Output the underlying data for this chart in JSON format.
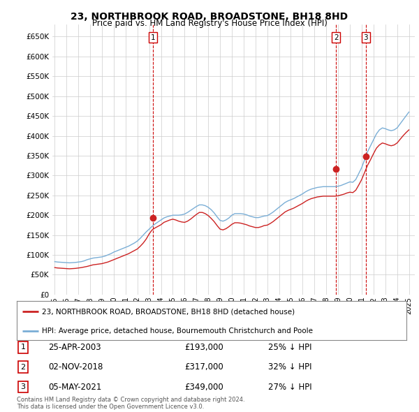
{
  "title": "23, NORTHBROOK ROAD, BROADSTONE, BH18 8HD",
  "subtitle": "Price paid vs. HM Land Registry's House Price Index (HPI)",
  "ylim": [
    0,
    680000
  ],
  "xlim_start": 1994.8,
  "xlim_end": 2025.5,
  "hpi_line_color": "#7aaed6",
  "price_line_color": "#cc2222",
  "sale_marker_color": "#cc2222",
  "hpi_data": [
    [
      1995,
      83000
    ],
    [
      1995.25,
      82000
    ],
    [
      1995.5,
      81500
    ],
    [
      1995.75,
      81000
    ],
    [
      1996,
      80500
    ],
    [
      1996.25,
      80000
    ],
    [
      1996.5,
      80500
    ],
    [
      1996.75,
      81000
    ],
    [
      1997,
      82000
    ],
    [
      1997.25,
      83000
    ],
    [
      1997.5,
      85000
    ],
    [
      1997.75,
      88000
    ],
    [
      1998,
      90000
    ],
    [
      1998.25,
      92000
    ],
    [
      1998.5,
      93000
    ],
    [
      1998.75,
      94000
    ],
    [
      1999,
      95000
    ],
    [
      1999.25,
      97000
    ],
    [
      1999.5,
      100000
    ],
    [
      1999.75,
      103000
    ],
    [
      2000,
      107000
    ],
    [
      2000.25,
      110000
    ],
    [
      2000.5,
      113000
    ],
    [
      2000.75,
      116000
    ],
    [
      2001,
      119000
    ],
    [
      2001.25,
      122000
    ],
    [
      2001.5,
      126000
    ],
    [
      2001.75,
      130000
    ],
    [
      2002,
      135000
    ],
    [
      2002.25,
      142000
    ],
    [
      2002.5,
      150000
    ],
    [
      2002.75,
      158000
    ],
    [
      2003,
      165000
    ],
    [
      2003.25,
      172000
    ],
    [
      2003.5,
      178000
    ],
    [
      2003.75,
      183000
    ],
    [
      2004,
      188000
    ],
    [
      2004.25,
      193000
    ],
    [
      2004.5,
      196000
    ],
    [
      2004.75,
      198000
    ],
    [
      2005,
      200000
    ],
    [
      2005.25,
      200000
    ],
    [
      2005.5,
      200000
    ],
    [
      2005.75,
      201000
    ],
    [
      2006,
      203000
    ],
    [
      2006.25,
      207000
    ],
    [
      2006.5,
      212000
    ],
    [
      2006.75,
      217000
    ],
    [
      2007,
      222000
    ],
    [
      2007.25,
      226000
    ],
    [
      2007.5,
      226000
    ],
    [
      2007.75,
      224000
    ],
    [
      2008,
      220000
    ],
    [
      2008.25,
      214000
    ],
    [
      2008.5,
      206000
    ],
    [
      2008.75,
      196000
    ],
    [
      2009,
      187000
    ],
    [
      2009.25,
      185000
    ],
    [
      2009.5,
      188000
    ],
    [
      2009.75,
      193000
    ],
    [
      2010,
      200000
    ],
    [
      2010.25,
      204000
    ],
    [
      2010.5,
      204000
    ],
    [
      2010.75,
      204000
    ],
    [
      2011,
      203000
    ],
    [
      2011.25,
      201000
    ],
    [
      2011.5,
      198000
    ],
    [
      2011.75,
      196000
    ],
    [
      2012,
      194000
    ],
    [
      2012.25,
      194000
    ],
    [
      2012.5,
      196000
    ],
    [
      2012.75,
      198000
    ],
    [
      2013,
      199000
    ],
    [
      2013.25,
      203000
    ],
    [
      2013.5,
      208000
    ],
    [
      2013.75,
      214000
    ],
    [
      2014,
      220000
    ],
    [
      2014.25,
      226000
    ],
    [
      2014.5,
      232000
    ],
    [
      2014.75,
      236000
    ],
    [
      2015,
      239000
    ],
    [
      2015.25,
      242000
    ],
    [
      2015.5,
      246000
    ],
    [
      2015.75,
      250000
    ],
    [
      2016,
      254000
    ],
    [
      2016.25,
      259000
    ],
    [
      2016.5,
      263000
    ],
    [
      2016.75,
      266000
    ],
    [
      2017,
      268000
    ],
    [
      2017.25,
      270000
    ],
    [
      2017.5,
      271000
    ],
    [
      2017.75,
      272000
    ],
    [
      2018,
      272000
    ],
    [
      2018.25,
      272000
    ],
    [
      2018.5,
      272000
    ],
    [
      2018.75,
      272000
    ],
    [
      2019,
      273000
    ],
    [
      2019.25,
      275000
    ],
    [
      2019.5,
      278000
    ],
    [
      2019.75,
      281000
    ],
    [
      2020,
      284000
    ],
    [
      2020.25,
      283000
    ],
    [
      2020.5,
      290000
    ],
    [
      2020.75,
      305000
    ],
    [
      2021,
      320000
    ],
    [
      2021.25,
      340000
    ],
    [
      2021.5,
      360000
    ],
    [
      2021.75,
      375000
    ],
    [
      2022,
      390000
    ],
    [
      2022.25,
      405000
    ],
    [
      2022.5,
      415000
    ],
    [
      2022.75,
      420000
    ],
    [
      2023,
      418000
    ],
    [
      2023.25,
      415000
    ],
    [
      2023.5,
      413000
    ],
    [
      2023.75,
      415000
    ],
    [
      2024,
      420000
    ],
    [
      2024.25,
      430000
    ],
    [
      2024.5,
      440000
    ],
    [
      2024.75,
      450000
    ],
    [
      2025,
      460000
    ]
  ],
  "price_data": [
    [
      1995,
      68000
    ],
    [
      1995.25,
      67000
    ],
    [
      1995.5,
      66500
    ],
    [
      1995.75,
      66000
    ],
    [
      1996,
      65500
    ],
    [
      1996.25,
      65000
    ],
    [
      1996.5,
      65500
    ],
    [
      1996.75,
      66000
    ],
    [
      1997,
      67000
    ],
    [
      1997.25,
      68000
    ],
    [
      1997.5,
      69500
    ],
    [
      1997.75,
      71000
    ],
    [
      1998,
      73000
    ],
    [
      1998.25,
      75000
    ],
    [
      1998.5,
      76000
    ],
    [
      1998.75,
      77000
    ],
    [
      1999,
      78000
    ],
    [
      1999.25,
      80000
    ],
    [
      1999.5,
      82000
    ],
    [
      1999.75,
      85000
    ],
    [
      2000,
      88000
    ],
    [
      2000.25,
      91000
    ],
    [
      2000.5,
      94000
    ],
    [
      2000.75,
      97000
    ],
    [
      2001,
      100000
    ],
    [
      2001.25,
      103000
    ],
    [
      2001.5,
      107000
    ],
    [
      2001.75,
      111000
    ],
    [
      2002,
      115000
    ],
    [
      2002.25,
      122000
    ],
    [
      2002.5,
      130000
    ],
    [
      2002.75,
      140000
    ],
    [
      2003,
      153000
    ],
    [
      2003.25,
      163000
    ],
    [
      2003.5,
      168000
    ],
    [
      2003.75,
      172000
    ],
    [
      2004,
      176000
    ],
    [
      2004.25,
      182000
    ],
    [
      2004.5,
      185000
    ],
    [
      2004.75,
      188000
    ],
    [
      2005,
      190000
    ],
    [
      2005.25,
      188000
    ],
    [
      2005.5,
      185000
    ],
    [
      2005.75,
      183000
    ],
    [
      2006,
      182000
    ],
    [
      2006.25,
      185000
    ],
    [
      2006.5,
      190000
    ],
    [
      2006.75,
      196000
    ],
    [
      2007,
      202000
    ],
    [
      2007.25,
      207000
    ],
    [
      2007.5,
      207000
    ],
    [
      2007.75,
      204000
    ],
    [
      2008,
      199000
    ],
    [
      2008.25,
      192000
    ],
    [
      2008.5,
      184000
    ],
    [
      2008.75,
      174000
    ],
    [
      2009,
      165000
    ],
    [
      2009.25,
      163000
    ],
    [
      2009.5,
      166000
    ],
    [
      2009.75,
      171000
    ],
    [
      2010,
      177000
    ],
    [
      2010.25,
      181000
    ],
    [
      2010.5,
      181000
    ],
    [
      2010.75,
      180000
    ],
    [
      2011,
      178000
    ],
    [
      2011.25,
      176000
    ],
    [
      2011.5,
      173000
    ],
    [
      2011.75,
      171000
    ],
    [
      2012,
      169000
    ],
    [
      2012.25,
      169000
    ],
    [
      2012.5,
      171000
    ],
    [
      2012.75,
      174000
    ],
    [
      2013,
      175000
    ],
    [
      2013.25,
      179000
    ],
    [
      2013.5,
      184000
    ],
    [
      2013.75,
      190000
    ],
    [
      2014,
      196000
    ],
    [
      2014.25,
      202000
    ],
    [
      2014.5,
      208000
    ],
    [
      2014.75,
      212000
    ],
    [
      2015,
      215000
    ],
    [
      2015.25,
      218000
    ],
    [
      2015.5,
      222000
    ],
    [
      2015.75,
      226000
    ],
    [
      2016,
      230000
    ],
    [
      2016.25,
      235000
    ],
    [
      2016.5,
      239000
    ],
    [
      2016.75,
      242000
    ],
    [
      2017,
      244000
    ],
    [
      2017.25,
      246000
    ],
    [
      2017.5,
      247000
    ],
    [
      2017.75,
      248000
    ],
    [
      2018,
      248000
    ],
    [
      2018.25,
      248000
    ],
    [
      2018.5,
      248000
    ],
    [
      2018.75,
      248000
    ],
    [
      2019,
      249000
    ],
    [
      2019.25,
      251000
    ],
    [
      2019.5,
      253000
    ],
    [
      2019.75,
      256000
    ],
    [
      2020,
      258000
    ],
    [
      2020.25,
      257000
    ],
    [
      2020.5,
      263000
    ],
    [
      2020.75,
      276000
    ],
    [
      2021,
      290000
    ],
    [
      2021.25,
      308000
    ],
    [
      2021.5,
      326000
    ],
    [
      2021.75,
      340000
    ],
    [
      2022,
      355000
    ],
    [
      2022.25,
      369000
    ],
    [
      2022.5,
      377000
    ],
    [
      2022.75,
      382000
    ],
    [
      2023,
      380000
    ],
    [
      2023.25,
      377000
    ],
    [
      2023.5,
      375000
    ],
    [
      2023.75,
      377000
    ],
    [
      2024,
      382000
    ],
    [
      2024.25,
      391000
    ],
    [
      2024.5,
      400000
    ],
    [
      2024.75,
      408000
    ],
    [
      2025,
      415000
    ]
  ],
  "sales": [
    {
      "index": 1,
      "year": 2003.31,
      "price": 193000
    },
    {
      "index": 2,
      "year": 2018.84,
      "price": 317000
    },
    {
      "index": 3,
      "year": 2021.35,
      "price": 349000
    }
  ],
  "sale_vline_color": "#cc0000",
  "legend_label_red": "23, NORTHBROOK ROAD, BROADSTONE, BH18 8HD (detached house)",
  "legend_label_blue": "HPI: Average price, detached house, Bournemouth Christchurch and Poole",
  "footer": "Contains HM Land Registry data © Crown copyright and database right 2024.\nThis data is licensed under the Open Government Licence v3.0.",
  "background_color": "#ffffff",
  "grid_color": "#cccccc",
  "table_rows": [
    {
      "num": "1",
      "date": "25-APR-2003",
      "price": "£193,000",
      "pct": "25% ↓ HPI"
    },
    {
      "num": "2",
      "date": "02-NOV-2018",
      "price": "£317,000",
      "pct": "32% ↓ HPI"
    },
    {
      "num": "3",
      "date": "05-MAY-2021",
      "price": "£349,000",
      "pct": "27% ↓ HPI"
    }
  ]
}
